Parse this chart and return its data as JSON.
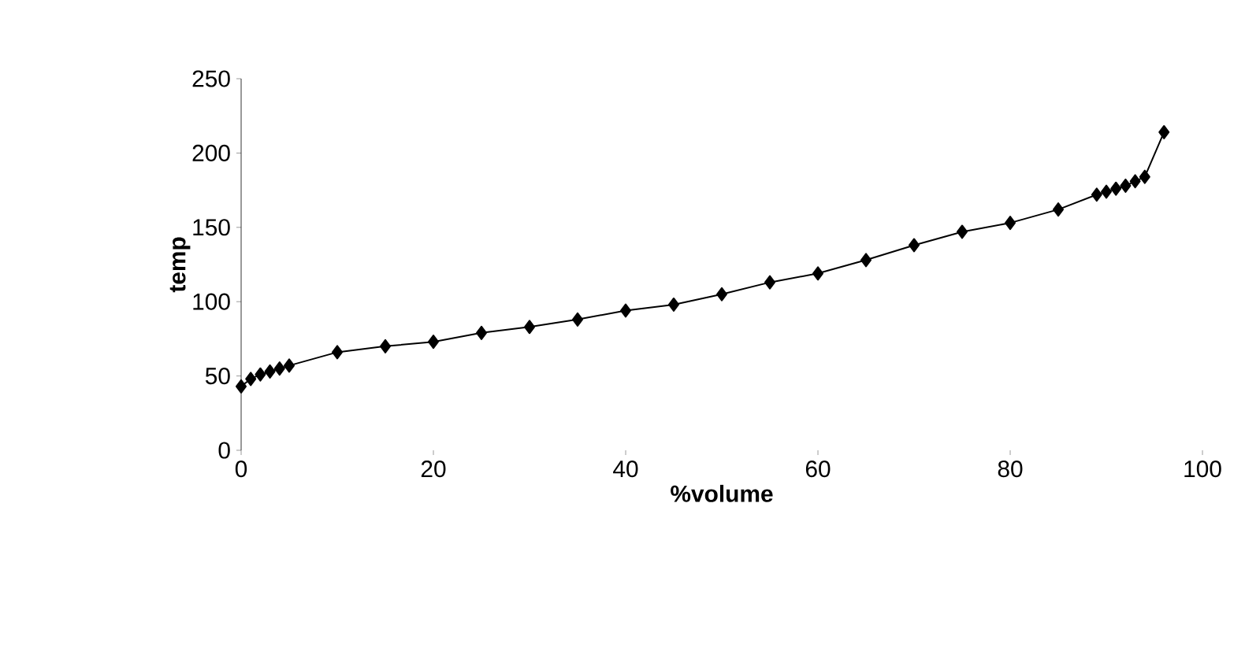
{
  "chart_data": {
    "type": "line",
    "xlabel": "%volume",
    "ylabel": "temp",
    "color": "#000000",
    "marker": "diamond",
    "grid": false,
    "x": [
      0,
      1,
      2,
      3,
      4,
      5,
      10,
      15,
      20,
      25,
      30,
      35,
      40,
      45,
      50,
      55,
      60,
      65,
      70,
      75,
      80,
      85,
      89,
      90,
      91,
      92,
      93,
      94,
      96
    ],
    "values": [
      43,
      48,
      51,
      53,
      55,
      57,
      66,
      70,
      73,
      79,
      83,
      88,
      94,
      98,
      105,
      113,
      119,
      128,
      138,
      147,
      153,
      162,
      172,
      174,
      176,
      178,
      181,
      184,
      214
    ],
    "xlim": [
      0,
      100
    ],
    "ylim": [
      0,
      250
    ],
    "xticks": [
      0,
      20,
      40,
      60,
      80,
      100
    ],
    "yticks": [
      0,
      50,
      100,
      150,
      200,
      250
    ]
  }
}
